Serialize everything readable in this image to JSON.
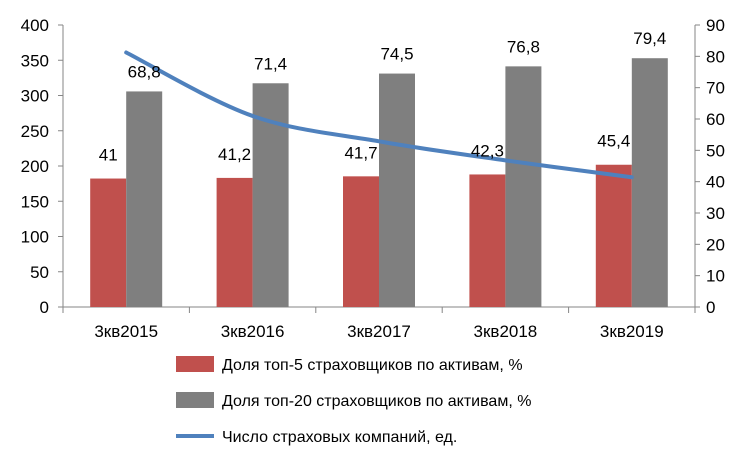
{
  "chart_data": {
    "type": "bar",
    "categories": [
      "3кв2015",
      "3кв2016",
      "3кв2017",
      "3кв2018",
      "3кв2019"
    ],
    "series": [
      {
        "name": "Доля топ-5 страховщиков по активам, %",
        "type": "bar",
        "axis": "right",
        "values": [
          41,
          41.2,
          41.7,
          42.3,
          45.4
        ],
        "labels": [
          "41",
          "41,2",
          "41,7",
          "42,3",
          "45,4"
        ],
        "color": "#c0504d"
      },
      {
        "name": "Доля топ-20 страховщиков по активам, %",
        "type": "bar",
        "axis": "right",
        "values": [
          68.8,
          71.4,
          74.5,
          76.8,
          79.4
        ],
        "labels": [
          "68,8",
          "71,4",
          "74,5",
          "76,8",
          "79,4"
        ],
        "color": "#7f7f7f"
      },
      {
        "name": "Число страховых компаний, ед.",
        "type": "line",
        "axis": "left",
        "values": [
          361,
          271,
          235,
          208,
          184
        ],
        "color": "#4f81bd"
      }
    ],
    "y_left": {
      "min": 0,
      "max": 400,
      "step": 50,
      "ticks": [
        "0",
        "50",
        "100",
        "150",
        "200",
        "250",
        "300",
        "350",
        "400"
      ]
    },
    "y_right": {
      "min": 0,
      "max": 90,
      "step": 10,
      "ticks": [
        "0",
        "10",
        "20",
        "30",
        "40",
        "50",
        "60",
        "70",
        "80",
        "90"
      ]
    },
    "grid": false,
    "legend": "bottom"
  }
}
